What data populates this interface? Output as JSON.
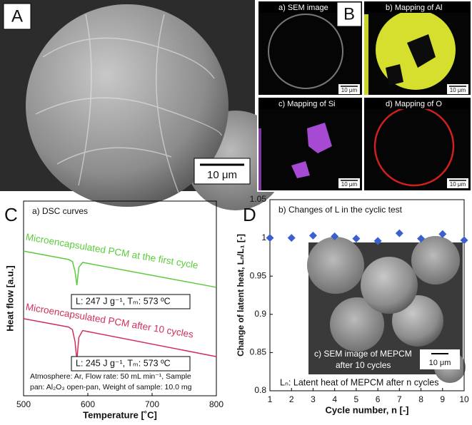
{
  "figure": {
    "panel_labels": [
      "A",
      "B",
      "C",
      "D"
    ],
    "scale_bar": "10 μm",
    "sub_images": [
      "a) SEM image",
      "b) Mapping of Al",
      "c) Mapping of Si",
      "d) Mapping of O"
    ],
    "sub_scale_bars": [
      "10 μm",
      "10 μm",
      "10 μm",
      "10 μm"
    ]
  },
  "chart_data": [
    {
      "type": "line",
      "title": "a) DSC curves",
      "x_label": "Temperature [˚C]",
      "y_label": "Heat flow [a.u.]",
      "xlim": [
        500,
        800
      ],
      "xticks": [
        500,
        600,
        700,
        800
      ],
      "ylim": [
        0,
        10
      ],
      "x": [
        500,
        570,
        576,
        580,
        583,
        586,
        592,
        800
      ],
      "series": [
        {
          "name": "Microencapsulated PCM at the first cycle",
          "color": "#5ccb3c",
          "values": [
            7.43,
            7.0,
            6.9,
            6.4,
            5.68,
            6.6,
            6.85,
            5.57
          ]
        },
        {
          "name": "Microencapsulated PCM after 10 cycles",
          "color": "#d0305a",
          "values": [
            3.96,
            3.53,
            3.4,
            2.8,
            1.83,
            3.0,
            3.35,
            2.01
          ]
        }
      ],
      "annotations": [
        "L: 247 J g⁻¹, Tₘ: 573 ºC",
        "L: 245 J g⁻¹, Tₘ: 573 ºC",
        "Atmosphere: Ar, Flow rate: 50 mL min⁻¹, Sample",
        "pan: Al₂O₃ open-pan, Weight of sample: 10.0 mg"
      ]
    },
    {
      "type": "scatter",
      "title": "b) Changes of L in the cyclic test",
      "x_label": "Cycle number, n [-]",
      "y_label": "Change of latent heat, Lₙ/L₁ [-]",
      "color": "#3c5fd0",
      "xlim": [
        1,
        10
      ],
      "xticks": [
        1,
        2,
        3,
        4,
        5,
        6,
        7,
        8,
        9,
        10
      ],
      "ylim": [
        0.8,
        1.05
      ],
      "yticks": [
        0.8,
        0.85,
        0.9,
        0.95,
        1,
        1.05
      ],
      "x": [
        1,
        2,
        3,
        4,
        5,
        6,
        7,
        8,
        9,
        10
      ],
      "values": [
        1.0,
        1.0,
        1.003,
        1.002,
        0.999,
        0.996,
        1.006,
        0.999,
        1.005,
        0.997
      ],
      "inset": {
        "caption": [
          "c) SEM image of MEPCM",
          "after 10 cycles"
        ],
        "scale_bar": "10 μm"
      },
      "note": "Lₙ: Latent heat of MEPCM after n cycles"
    }
  ]
}
